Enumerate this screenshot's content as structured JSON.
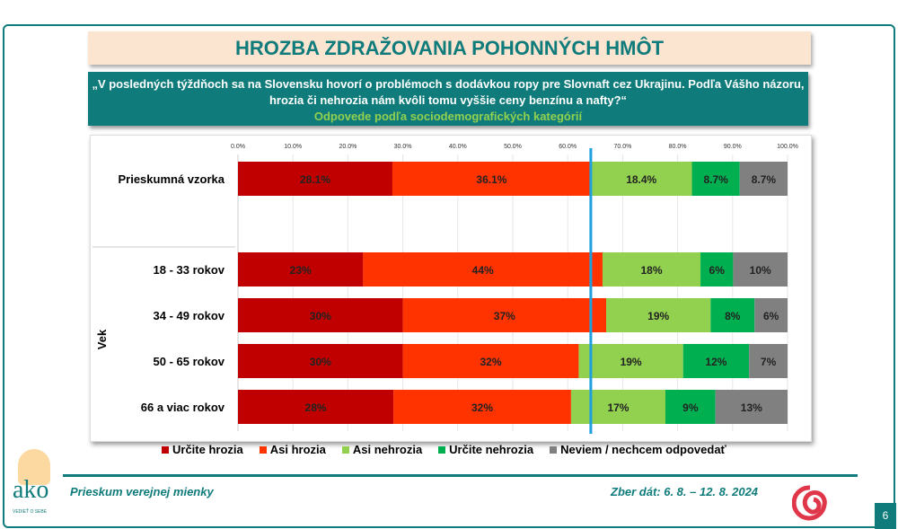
{
  "title": "HROZBA ZDRAŽOVANIA POHONNÝCH HMÔT",
  "question_line1": "„V posledných týždňoch sa na Slovensku hovorí o problémoch s dodávkou ropy pre Slovnaft cez Ukrajinu. Podľa Vášho názoru,",
  "question_line2": "hrozia či nehrozia nám kvôli tomu vyššie ceny benzínu a nafty?“",
  "subtitle": "Odpovede podľa sociodemografických kategórií",
  "footer": {
    "left": "Prieskum verejnej mienky",
    "right": "Zber dát: 6. 8. – 12. 8. 2024",
    "page": "6",
    "logo_text": "ako",
    "logo_tagline": "VEDIEŤ O SEBE"
  },
  "chart_data": {
    "type": "bar",
    "orientation": "horizontal",
    "stacked": true,
    "xlim": [
      0,
      100
    ],
    "x_ticks": [
      "0.0%",
      "10.0%",
      "20.0%",
      "30.0%",
      "40.0%",
      "50.0%",
      "60.0%",
      "70.0%",
      "80.0%",
      "90.0%",
      "100.0%"
    ],
    "group_label": "Vek",
    "reference_line": 64.2,
    "categories": [
      "Prieskumná vzorka",
      "18 - 33 rokov",
      "34 - 49 rokov",
      "50 - 65 rokov",
      "66 a viac rokov"
    ],
    "series": [
      {
        "name": "Určite hrozia",
        "color": "#c00000",
        "values": [
          28.1,
          23,
          30,
          30,
          28
        ],
        "labels": [
          "28.1%",
          "23%",
          "30%",
          "30%",
          "28%"
        ]
      },
      {
        "name": "Asi hrozia",
        "color": "#ff3300",
        "values": [
          36.1,
          44,
          37,
          32,
          32
        ],
        "labels": [
          "36.1%",
          "44%",
          "37%",
          "32%",
          "32%"
        ]
      },
      {
        "name": "Asi nehrozia",
        "color": "#92d050",
        "values": [
          18.4,
          18,
          19,
          19,
          17
        ],
        "labels": [
          "18.4%",
          "18%",
          "19%",
          "19%",
          "17%"
        ]
      },
      {
        "name": "Určite nehrozia",
        "color": "#00b050",
        "values": [
          8.7,
          6,
          8,
          12,
          9
        ],
        "labels": [
          "8.7%",
          "6%",
          "8%",
          "12%",
          "9%"
        ]
      },
      {
        "name": "Neviem / nechcem odpovedať",
        "color": "#808080",
        "values": [
          8.7,
          10,
          6,
          7,
          13
        ],
        "labels": [
          "8.7%",
          "10%",
          "6%",
          "7%",
          "13%"
        ]
      }
    ]
  }
}
